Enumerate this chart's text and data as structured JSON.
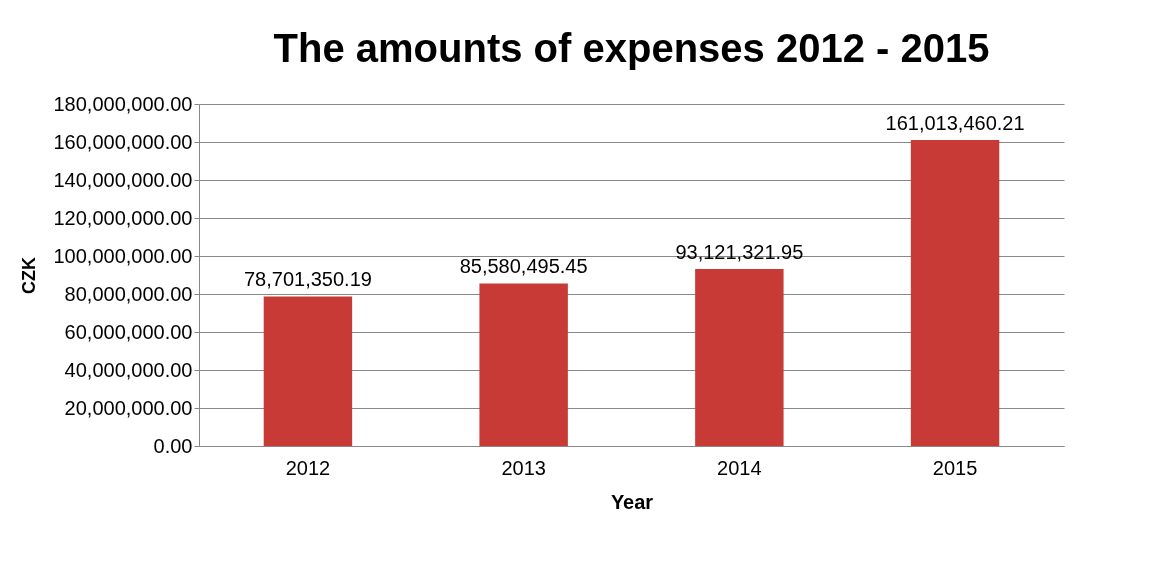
{
  "chart_data": {
    "type": "bar",
    "title": "The amounts of expenses 2012 - 2015",
    "xlabel": "Year",
    "ylabel": "CZK",
    "categories": [
      "2012",
      "2013",
      "2014",
      "2015"
    ],
    "values": [
      78701350.19,
      85580495.45,
      93121321.95,
      161013460.21
    ],
    "value_labels": [
      "78,701,350.19",
      "85,580,495.45",
      "93,121,321.95",
      "161,013,460.21"
    ],
    "color": "#c83a36",
    "ylim": [
      0,
      180000000
    ],
    "yticks": [
      {
        "value": 0,
        "label": "0.00"
      },
      {
        "value": 20000000,
        "label": "20,000,000.00"
      },
      {
        "value": 40000000,
        "label": "40,000,000.00"
      },
      {
        "value": 60000000,
        "label": "60,000,000.00"
      },
      {
        "value": 80000000,
        "label": "80,000,000.00"
      },
      {
        "value": 100000000,
        "label": "100,000,000.00"
      },
      {
        "value": 120000000,
        "label": "120,000,000.00"
      },
      {
        "value": 140000000,
        "label": "140,000,000.00"
      },
      {
        "value": 160000000,
        "label": "160,000,000.00"
      },
      {
        "value": 180000000,
        "label": "180,000,000.00"
      }
    ],
    "grid": "y"
  }
}
